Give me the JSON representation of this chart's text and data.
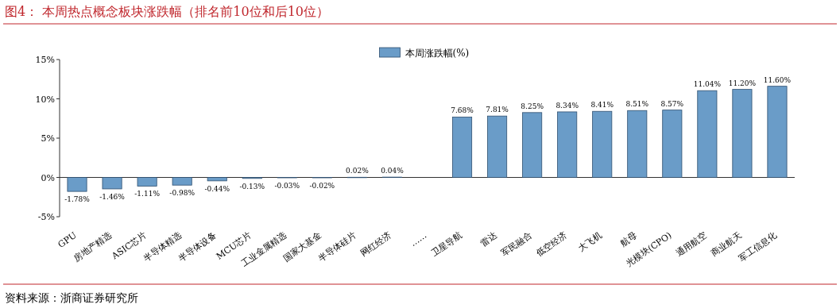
{
  "chart_data": {
    "type": "bar",
    "title": "图4：  本周热点概念板块涨跌幅（排名前10位和后10位）",
    "categories": [
      "GPU",
      "房地产精选",
      "ASIC芯片",
      "半导体精选",
      "半导体设备",
      "MCU芯片",
      "工业金属精选",
      "国家大基金",
      "半导体硅片",
      "网红经济",
      "……",
      "卫星导航",
      "雷达",
      "军民融合",
      "低空经济",
      "大飞机",
      "航母",
      "光模块(CPO)",
      "通用航空",
      "商业航天",
      "军工信息化"
    ],
    "series": [
      {
        "name": "本周涨跌幅(%)",
        "color": "#6a9cc8",
        "values": [
          -1.78,
          -1.46,
          -1.11,
          -0.98,
          -0.44,
          -0.13,
          -0.03,
          -0.02,
          0.02,
          0.04,
          null,
          7.68,
          7.81,
          8.25,
          8.34,
          8.41,
          8.51,
          8.57,
          11.04,
          11.2,
          11.6
        ],
        "value_labels": [
          "-1.78%",
          "-1.46%",
          "-1.11%",
          "-0.98%",
          "-0.44%",
          "-0.13%",
          "-0.03%",
          "-0.02%",
          "0.02%",
          "0.04%",
          null,
          "7.68%",
          "7.81%",
          "8.25%",
          "8.34%",
          "8.41%",
          "8.51%",
          "8.57%",
          "11.04%",
          "11.20%",
          "11.60%"
        ]
      }
    ],
    "ylim": [
      -5,
      15
    ],
    "yticks": [
      {
        "value": -5,
        "label": "-5%"
      },
      {
        "value": 0,
        "label": "0%"
      },
      {
        "value": 5,
        "label": "5%"
      },
      {
        "value": 10,
        "label": "10%"
      },
      {
        "value": 15,
        "label": "15%"
      }
    ],
    "legend": "top",
    "annotations": [
      "资料来源：浙商证券研究所"
    ]
  }
}
